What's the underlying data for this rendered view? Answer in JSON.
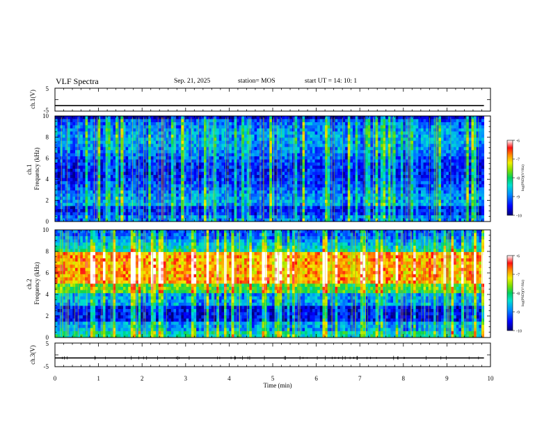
{
  "header": {
    "title": "VLF Spectra",
    "date": "Sep. 21, 2025",
    "station": "station= MOS",
    "start": "start  UT =   14: 10: 1"
  },
  "chart_data": [
    {
      "type": "line",
      "name": "ch1-waveform",
      "ylabel": "ch.1(V)",
      "ylim": [
        -5,
        5
      ],
      "yticks": [
        "5",
        "-5"
      ],
      "xlim": [
        0,
        10
      ],
      "level": -2.6,
      "data_end": 9.85
    },
    {
      "type": "heatmap",
      "name": "ch1-spectrogram",
      "ylabel": "ch.1\nFrequency (kHz)",
      "ylim": [
        0,
        10
      ],
      "yticks": [
        "0",
        "2",
        "4",
        "6",
        "8",
        "10"
      ],
      "xlim": [
        0,
        10
      ],
      "data_end": 9.85,
      "colorbar": {
        "label": "log(PSD)(V²/Hz)",
        "ticks": [
          "-6",
          "-7",
          "-8",
          "-9",
          "-10"
        ],
        "range": [
          -10,
          -6
        ]
      }
    },
    {
      "type": "heatmap",
      "name": "ch2-spectrogram",
      "ylabel": "ch.2\nFrequency (kHz)",
      "ylim": [
        0,
        10
      ],
      "yticks": [
        "0",
        "2",
        "4",
        "6",
        "8",
        "10"
      ],
      "xlim": [
        0,
        10
      ],
      "data_end": 9.85,
      "colorbar": {
        "label": "log(PSD)(V²/Hz)",
        "ticks": [
          "-6",
          "-7",
          "-8",
          "-9",
          "-10"
        ],
        "range": [
          -10,
          -6
        ]
      }
    },
    {
      "type": "line",
      "name": "ch3-waveform",
      "ylabel": "ch.3(V)",
      "ylim": [
        -5,
        5
      ],
      "yticks": [
        "5",
        "-5"
      ],
      "xlim": [
        0,
        10
      ],
      "level": -1.3,
      "data_end": 9.85,
      "xlabel": "Time (min)",
      "xticks": [
        "0",
        "1",
        "2",
        "3",
        "4",
        "5",
        "6",
        "7",
        "8",
        "9",
        "10"
      ]
    }
  ],
  "colors": {
    "colormap": [
      "#00007a",
      "#0000ff",
      "#0090ff",
      "#00e0d0",
      "#00d060",
      "#80e000",
      "#f0f000",
      "#ff9000",
      "#ff1010",
      "#ffffff"
    ]
  }
}
